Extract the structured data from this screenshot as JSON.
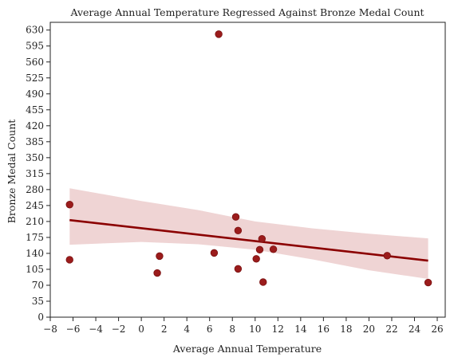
{
  "chart_data": {
    "type": "scatter",
    "title": "Average Annual Temperature Regressed Against Bronze Medal Count",
    "xlabel": "Average Annual Temperature",
    "ylabel": "Bronze Medal Count",
    "xlim": [
      -8,
      26.7
    ],
    "ylim": [
      0,
      647
    ],
    "xticks": [
      -8,
      -6,
      -4,
      -2,
      0,
      2,
      4,
      6,
      8,
      10,
      12,
      14,
      16,
      18,
      20,
      22,
      24,
      26
    ],
    "yticks": [
      0,
      35,
      70,
      105,
      140,
      175,
      210,
      245,
      280,
      315,
      350,
      385,
      420,
      455,
      490,
      525,
      560,
      595,
      630
    ],
    "grid": false,
    "legend": "none",
    "colors": {
      "points": "#9b1c1c",
      "line": "#8b0000",
      "band": "#e9c6c6"
    },
    "points": [
      {
        "x": 6.8,
        "y": 621
      },
      {
        "x": -6.3,
        "y": 247
      },
      {
        "x": -6.3,
        "y": 126
      },
      {
        "x": 1.4,
        "y": 97
      },
      {
        "x": 1.6,
        "y": 134
      },
      {
        "x": 6.4,
        "y": 141
      },
      {
        "x": 8.3,
        "y": 220
      },
      {
        "x": 8.5,
        "y": 190
      },
      {
        "x": 8.5,
        "y": 106
      },
      {
        "x": 10.1,
        "y": 128
      },
      {
        "x": 10.4,
        "y": 148
      },
      {
        "x": 10.6,
        "y": 172
      },
      {
        "x": 10.7,
        "y": 77
      },
      {
        "x": 11.6,
        "y": 149
      },
      {
        "x": 21.6,
        "y": 135
      },
      {
        "x": 25.2,
        "y": 76
      }
    ],
    "regression": {
      "x": [
        -6.3,
        25.2
      ],
      "y": [
        213,
        124
      ]
    },
    "confidence_band": {
      "x": [
        -6.3,
        0,
        5,
        10,
        15,
        20,
        25.2
      ],
      "upper": [
        283,
        255,
        235,
        210,
        195,
        183,
        173
      ],
      "lower": [
        159,
        165,
        160,
        148,
        127,
        103,
        84
      ]
    }
  }
}
